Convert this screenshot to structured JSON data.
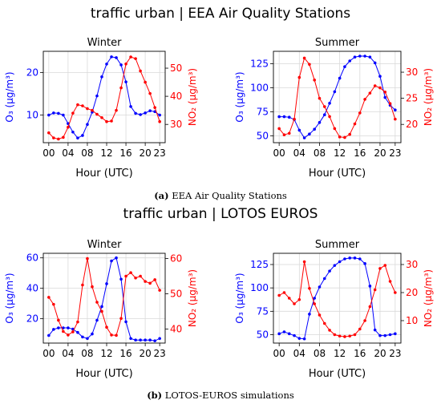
{
  "figure": {
    "title_top": "traffic urban | EEA Air Quality Stations",
    "title_bottom": "traffic urban | LOTOS EUROS",
    "caption_a": {
      "tag": "(a)",
      "text": " EEA Air Quality Stations"
    },
    "caption_b": {
      "tag": "(b)",
      "text": " LOTOS-EUROS simulations"
    }
  },
  "colors": {
    "o3": "#0000ff",
    "no2": "#ff0000",
    "grid": "#d9d9d9",
    "axis": "#000000"
  },
  "chart_data": [
    {
      "type": "line",
      "title": "Winter",
      "xlabel": "Hour (UTC)",
      "ylabel_left": "O₃ (μg/m³)",
      "ylabel_right": "NO₂ (μg/m³)",
      "x": [
        0,
        1,
        2,
        3,
        4,
        5,
        6,
        7,
        8,
        9,
        10,
        11,
        12,
        13,
        14,
        15,
        16,
        17,
        18,
        19,
        20,
        21,
        22,
        23
      ],
      "xticks": [
        "00",
        "04",
        "08",
        "12",
        "16",
        "20",
        "23"
      ],
      "ylim_left": [
        3.5,
        25
      ],
      "yticks_left": [
        10,
        20
      ],
      "ylim_right": [
        23.5,
        56
      ],
      "yticks_right": [
        30,
        40,
        50
      ],
      "grid": true,
      "series": [
        {
          "name": "O₃",
          "axis": "left",
          "color": "#0000ff",
          "values": [
            10,
            10.5,
            10.4,
            10,
            8,
            6,
            4.6,
            5.2,
            7.8,
            10.7,
            14.5,
            19,
            22,
            23.7,
            23.5,
            21.8,
            17.8,
            12,
            10.4,
            10.1,
            10.5,
            11,
            10.8,
            10
          ]
        },
        {
          "name": "NO₂",
          "axis": "right",
          "color": "#ff0000",
          "values": [
            27,
            25.2,
            24.8,
            25.4,
            29,
            34,
            37,
            36.6,
            35.6,
            35,
            33.6,
            32.4,
            31,
            31.2,
            35,
            43,
            51.5,
            54,
            53.4,
            49,
            45,
            41,
            36,
            31
          ]
        }
      ]
    },
    {
      "type": "line",
      "title": "Summer",
      "xlabel": "Hour (UTC)",
      "ylabel_left": "O₃ (μg/m³)",
      "ylabel_right": "NO₂ (μg/m³)",
      "x": [
        0,
        1,
        2,
        3,
        4,
        5,
        6,
        7,
        8,
        9,
        10,
        11,
        12,
        13,
        14,
        15,
        16,
        17,
        18,
        19,
        20,
        21,
        22,
        23
      ],
      "xticks": [
        "00",
        "04",
        "08",
        "12",
        "16",
        "20",
        "23"
      ],
      "ylim_left": [
        43,
        138
      ],
      "yticks_left": [
        50,
        75,
        100,
        125
      ],
      "ylim_right": [
        16.5,
        34
      ],
      "yticks_right": [
        20,
        25,
        30
      ],
      "grid": true,
      "series": [
        {
          "name": "O₃",
          "axis": "left",
          "color": "#0000ff",
          "values": [
            70,
            70,
            69.5,
            67,
            56,
            48,
            52,
            57,
            64,
            72,
            84,
            96,
            110,
            122,
            128,
            132,
            133,
            133,
            132,
            126,
            112,
            90,
            82,
            77
          ]
        },
        {
          "name": "NO₂",
          "axis": "right",
          "color": "#ff0000",
          "values": [
            19.2,
            18,
            18.3,
            21,
            29,
            32.7,
            31.5,
            28.5,
            25,
            23.4,
            21.5,
            19.2,
            17.6,
            17.5,
            18.1,
            20.1,
            22.2,
            24.8,
            26,
            27.4,
            27,
            26.2,
            24,
            21
          ]
        }
      ]
    },
    {
      "type": "line",
      "title": "Winter",
      "xlabel": "Hour (UTC)",
      "ylabel_left": "O₃ (μg/m³)",
      "ylabel_right": "NO₂ (μg/m³)",
      "x": [
        0,
        1,
        2,
        3,
        4,
        5,
        6,
        7,
        8,
        9,
        10,
        11,
        12,
        13,
        14,
        15,
        16,
        17,
        18,
        19,
        20,
        21,
        22,
        23
      ],
      "xticks": [
        "00",
        "04",
        "08",
        "12",
        "16",
        "20",
        "23"
      ],
      "ylim_left": [
        4,
        63
      ],
      "yticks_left": [
        20,
        40,
        60
      ],
      "ylim_right": [
        36,
        61.5
      ],
      "yticks_right": [
        40,
        50,
        60
      ],
      "grid": true,
      "series": [
        {
          "name": "O₃",
          "axis": "left",
          "color": "#0000ff",
          "values": [
            9,
            13,
            14,
            14,
            14,
            13.2,
            11,
            8,
            7,
            10,
            19,
            28,
            43,
            58,
            60,
            46,
            18,
            7,
            6,
            6,
            6,
            6,
            5.5,
            7
          ]
        },
        {
          "name": "NO₂",
          "axis": "right",
          "color": "#ff0000",
          "values": [
            49,
            47,
            42.5,
            39.3,
            38.3,
            39.2,
            42,
            52.5,
            60,
            52,
            47.6,
            45,
            40.5,
            38.3,
            38.2,
            43,
            55,
            56,
            54.5,
            55,
            53.5,
            53,
            54,
            51
          ]
        }
      ]
    },
    {
      "type": "line",
      "title": "Summer",
      "xlabel": "Hour (UTC)",
      "ylabel_left": "O₃ (μg/m³)",
      "ylabel_right": "NO₂ (μg/m³)",
      "x": [
        0,
        1,
        2,
        3,
        4,
        5,
        6,
        7,
        8,
        9,
        10,
        11,
        12,
        13,
        14,
        15,
        16,
        17,
        18,
        19,
        20,
        21,
        22,
        23
      ],
      "xticks": [
        "00",
        "04",
        "08",
        "12",
        "16",
        "20",
        "23"
      ],
      "ylim_left": [
        41,
        137
      ],
      "yticks_left": [
        50,
        75,
        100,
        125
      ],
      "ylim_right": [
        2,
        34
      ],
      "yticks_right": [
        10,
        20,
        30
      ],
      "grid": true,
      "series": [
        {
          "name": "O₃",
          "axis": "left",
          "color": "#0000ff",
          "values": [
            51,
            53,
            51,
            49,
            46,
            45.5,
            72,
            89,
            101,
            110,
            118,
            124,
            128,
            131,
            132,
            132,
            131,
            126,
            102,
            55,
            49,
            49,
            50,
            51
          ]
        },
        {
          "name": "NO₂",
          "axis": "right",
          "color": "#ff0000",
          "values": [
            19,
            20,
            18,
            16,
            17.5,
            31,
            21.5,
            16,
            12,
            9,
            6.6,
            5,
            4.5,
            4.3,
            4.5,
            5,
            7,
            10,
            15,
            21,
            28.6,
            29.7,
            24,
            20
          ]
        }
      ]
    }
  ]
}
